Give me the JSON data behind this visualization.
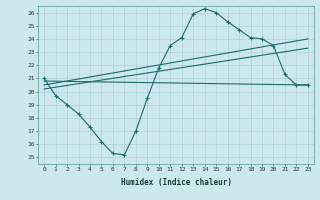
{
  "xlabel": "Humidex (Indice chaleur)",
  "ylabel": "",
  "background_color": "#cce8ec",
  "grid_color": "#aacdd4",
  "line_color": "#1a6b6b",
  "xlim": [
    -0.5,
    23.5
  ],
  "ylim": [
    14.5,
    26.5
  ],
  "yticks": [
    15,
    16,
    17,
    18,
    19,
    20,
    21,
    22,
    23,
    24,
    25,
    26
  ],
  "xticks": [
    0,
    1,
    2,
    3,
    4,
    5,
    6,
    7,
    8,
    9,
    10,
    11,
    12,
    13,
    14,
    15,
    16,
    17,
    18,
    19,
    20,
    21,
    22,
    23
  ],
  "series1_x": [
    0,
    1,
    2,
    3,
    4,
    5,
    6,
    7,
    8,
    9,
    10,
    11,
    12,
    13,
    14,
    15,
    16,
    17,
    18,
    19,
    20,
    21,
    22,
    23
  ],
  "series1_y": [
    21.0,
    19.7,
    19.0,
    18.3,
    17.3,
    16.2,
    15.3,
    15.2,
    17.0,
    19.5,
    21.8,
    23.5,
    24.1,
    25.9,
    26.3,
    26.0,
    25.3,
    24.7,
    24.1,
    24.0,
    23.5,
    21.3,
    20.5,
    20.5
  ],
  "series2_x": [
    0,
    23
  ],
  "series2_y": [
    20.5,
    24.0
  ],
  "series3_x": [
    0,
    23
  ],
  "series3_y": [
    20.8,
    20.5
  ],
  "series4_x": [
    0,
    23
  ],
  "series4_y": [
    20.2,
    23.3
  ]
}
